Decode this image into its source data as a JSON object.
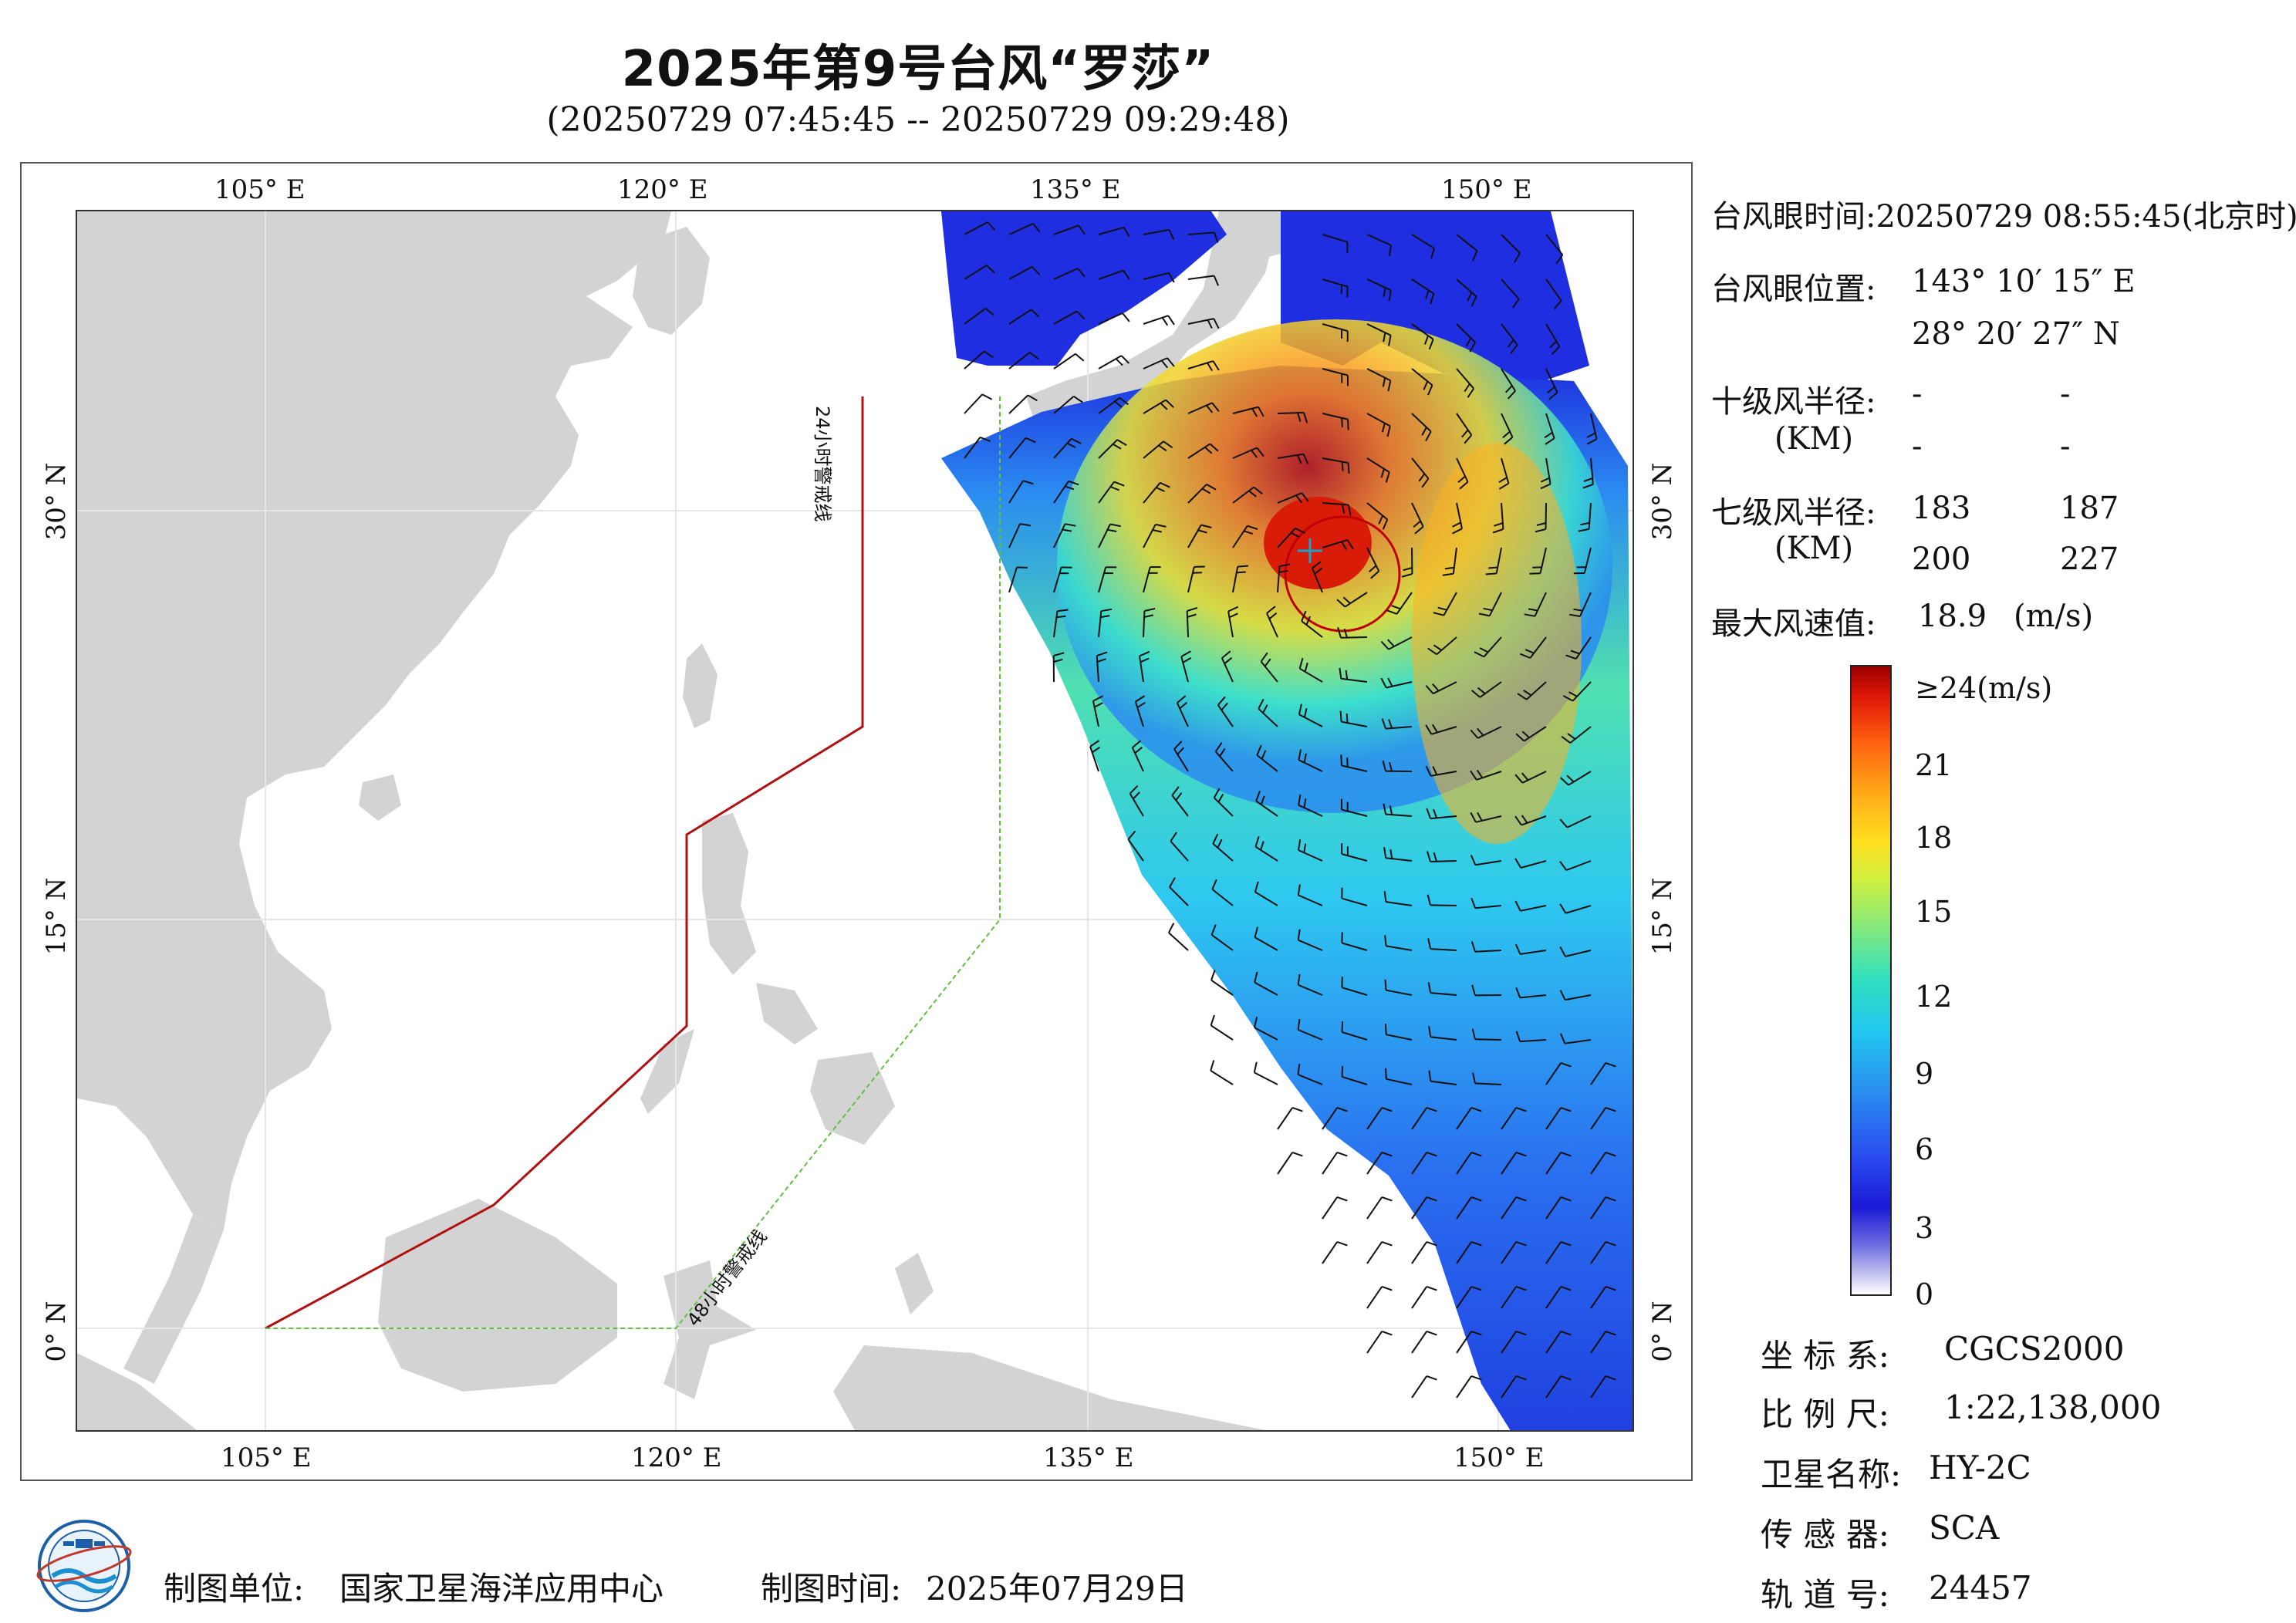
{
  "title": "2025年第9号台风“罗莎”",
  "subtitle": "(20250729 07:45:45 -- 20250729 09:29:48)",
  "axes": {
    "lon_ticks": [
      "105° E",
      "120° E",
      "135° E",
      "150° E"
    ],
    "lat_ticks": [
      "30° N",
      "15° N",
      "0° N"
    ]
  },
  "warning_lines": {
    "line_24h": "24小时警戒线",
    "line_48h": "48小时警戒线",
    "line_24h_color": "#b01010",
    "line_48h_color": "#5fbf3f"
  },
  "info": {
    "eye_time_label": "台风眼时间:",
    "eye_time_value": "20250729 08:55:45(北京时)",
    "eye_pos_label": "台风眼位置:",
    "eye_pos_lon": "143° 10′ 15″ E",
    "eye_pos_lat": "28° 20′ 27″ N",
    "r10_label": "十级风半径:",
    "r10_unit": "(KM)",
    "r10_values": [
      "-",
      "-",
      "-",
      "-"
    ],
    "r7_label": "七级风半径:",
    "r7_unit": "(KM)",
    "r7_values": [
      "183",
      "187",
      "200",
      "227"
    ],
    "max_wind_label": "最大风速值:",
    "max_wind_value": "18.9",
    "max_wind_unit": "(m/s)"
  },
  "colorbar": {
    "labels": [
      "≥24(m/s)",
      "21",
      "18",
      "15",
      "12",
      "9",
      "6",
      "3",
      "0"
    ]
  },
  "meta": {
    "crs_label": "坐 标 系:",
    "crs_value": "CGCS2000",
    "scale_label": "比 例 尺:",
    "scale_value": "1:22,138,000",
    "sat_label": "卫星名称:",
    "sat_value": "HY-2C",
    "sensor_label": "传 感 器:",
    "sensor_value": "SCA",
    "orbit_label": "轨 道 号:",
    "orbit_value": "24457"
  },
  "footer": {
    "unit_label": "制图单位:",
    "unit_value": "国家卫星海洋应用中心",
    "time_label": "制图时间:",
    "time_value": "2025年07月29日"
  }
}
